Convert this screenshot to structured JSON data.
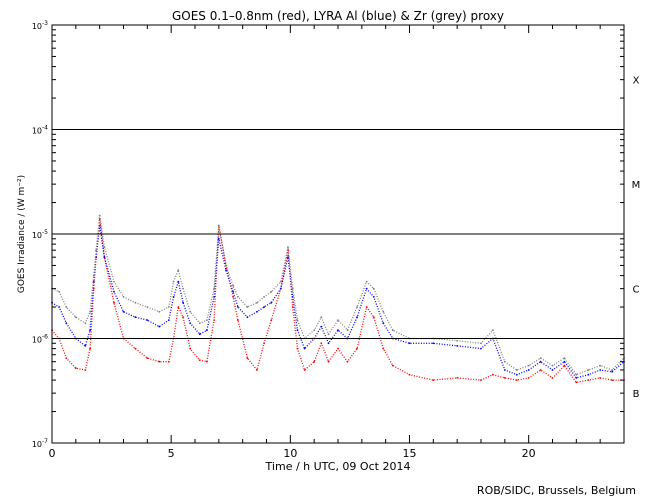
{
  "chart_data": {
    "type": "scatter",
    "title": "GOES 0.1–0.8nm (red), LYRA Al (blue) & Zr (grey) proxy",
    "xlabel": "Time / h UTC, 09 Oct 2014",
    "ylabel": "GOES Irradiance / (W m⁻²)",
    "xlim": [
      0,
      24
    ],
    "ylim": [
      1e-07,
      0.001
    ],
    "yscale": "log",
    "x_ticks": [
      0,
      5,
      10,
      15,
      20
    ],
    "y_ticks": [
      {
        "mantissa": "10",
        "exp": "-7",
        "value": 1e-07
      },
      {
        "mantissa": "10",
        "exp": "-6",
        "value": 1e-06
      },
      {
        "mantissa": "10",
        "exp": "-5",
        "value": 1e-05
      },
      {
        "mantissa": "10",
        "exp": "-4",
        "value": 0.0001
      },
      {
        "mantissa": "10",
        "exp": "-3",
        "value": 0.001
      }
    ],
    "flare_class_lines": [
      1e-06,
      1e-05,
      0.0001
    ],
    "flare_class_labels": [
      {
        "label": "X",
        "value": 0.0003
      },
      {
        "label": "M",
        "value": 3e-05
      },
      {
        "label": "C",
        "value": 3e-06
      },
      {
        "label": "B",
        "value": 3e-07
      }
    ],
    "grid": false,
    "series": [
      {
        "name": "GOES 0.1-0.8nm",
        "color": "#ff0000",
        "points": [
          [
            0.0,
            1.2e-06
          ],
          [
            0.3,
            1e-06
          ],
          [
            0.6,
            6.5e-07
          ],
          [
            1.0,
            5.2e-07
          ],
          [
            1.4,
            5e-07
          ],
          [
            1.6,
            8e-07
          ],
          [
            1.75,
            3e-06
          ],
          [
            1.85,
            6e-06
          ],
          [
            2.0,
            1.4e-05
          ],
          [
            2.2,
            6e-06
          ],
          [
            2.6,
            2.2e-06
          ],
          [
            3.0,
            1e-06
          ],
          [
            3.5,
            8e-07
          ],
          [
            4.0,
            6.5e-07
          ],
          [
            4.5,
            6e-07
          ],
          [
            4.9,
            6e-07
          ],
          [
            5.1,
            1e-06
          ],
          [
            5.3,
            2e-06
          ],
          [
            5.5,
            1.6e-06
          ],
          [
            5.8,
            8e-07
          ],
          [
            6.2,
            6.2e-07
          ],
          [
            6.5,
            6e-07
          ],
          [
            6.8,
            1.5e-06
          ],
          [
            7.0,
            1.2e-05
          ],
          [
            7.3,
            5e-06
          ],
          [
            7.6,
            2.5e-06
          ],
          [
            7.8,
            1.5e-06
          ],
          [
            8.2,
            6.5e-07
          ],
          [
            8.6,
            5e-07
          ],
          [
            8.9,
            9e-07
          ],
          [
            9.2,
            1.5e-06
          ],
          [
            9.6,
            3e-06
          ],
          [
            9.9,
            7e-06
          ],
          [
            10.1,
            2e-06
          ],
          [
            10.3,
            8e-07
          ],
          [
            10.6,
            5e-07
          ],
          [
            11.0,
            6e-07
          ],
          [
            11.3,
            9e-07
          ],
          [
            11.6,
            6e-07
          ],
          [
            12.0,
            8e-07
          ],
          [
            12.4,
            6e-07
          ],
          [
            12.8,
            8e-07
          ],
          [
            13.2,
            2e-06
          ],
          [
            13.5,
            1.6e-06
          ],
          [
            13.9,
            8e-07
          ],
          [
            14.3,
            5.5e-07
          ],
          [
            15.0,
            4.5e-07
          ],
          [
            16.0,
            4e-07
          ],
          [
            17.0,
            4.2e-07
          ],
          [
            18.0,
            4e-07
          ],
          [
            18.5,
            4.5e-07
          ],
          [
            19.0,
            4.2e-07
          ],
          [
            19.5,
            4e-07
          ],
          [
            20.0,
            4.2e-07
          ],
          [
            20.5,
            5e-07
          ],
          [
            21.0,
            4.2e-07
          ],
          [
            21.5,
            5.5e-07
          ],
          [
            22.0,
            3.8e-07
          ],
          [
            22.5,
            4e-07
          ],
          [
            23.0,
            4.2e-07
          ],
          [
            23.5,
            4e-07
          ],
          [
            24.0,
            4e-07
          ]
        ]
      },
      {
        "name": "LYRA Al proxy",
        "color": "#0000ff",
        "points": [
          [
            0.0,
            2.2e-06
          ],
          [
            0.3,
            2e-06
          ],
          [
            0.6,
            1.4e-06
          ],
          [
            1.0,
            1e-06
          ],
          [
            1.4,
            8.5e-07
          ],
          [
            1.6,
            1.2e-06
          ],
          [
            1.75,
            3.5e-06
          ],
          [
            1.85,
            6e-06
          ],
          [
            2.0,
            1.2e-05
          ],
          [
            2.2,
            6e-06
          ],
          [
            2.6,
            2.8e-06
          ],
          [
            3.0,
            1.8e-06
          ],
          [
            3.5,
            1.6e-06
          ],
          [
            4.0,
            1.5e-06
          ],
          [
            4.5,
            1.3e-06
          ],
          [
            4.9,
            1.5e-06
          ],
          [
            5.1,
            2.5e-06
          ],
          [
            5.3,
            3.5e-06
          ],
          [
            5.5,
            2.2e-06
          ],
          [
            5.8,
            1.4e-06
          ],
          [
            6.2,
            1.1e-06
          ],
          [
            6.5,
            1.2e-06
          ],
          [
            6.8,
            2.5e-06
          ],
          [
            7.0,
            9e-06
          ],
          [
            7.3,
            4.5e-06
          ],
          [
            7.6,
            2.8e-06
          ],
          [
            7.8,
            2e-06
          ],
          [
            8.2,
            1.6e-06
          ],
          [
            8.6,
            1.8e-06
          ],
          [
            8.9,
            2e-06
          ],
          [
            9.2,
            2.2e-06
          ],
          [
            9.6,
            3e-06
          ],
          [
            9.9,
            6e-06
          ],
          [
            10.1,
            2.5e-06
          ],
          [
            10.3,
            1.2e-06
          ],
          [
            10.6,
            8e-07
          ],
          [
            11.0,
            1e-06
          ],
          [
            11.3,
            1.3e-06
          ],
          [
            11.6,
            9e-07
          ],
          [
            12.0,
            1.2e-06
          ],
          [
            12.4,
            1e-06
          ],
          [
            12.8,
            1.6e-06
          ],
          [
            13.2,
            3e-06
          ],
          [
            13.5,
            2.5e-06
          ],
          [
            13.9,
            1.4e-06
          ],
          [
            14.3,
            1e-06
          ],
          [
            15.0,
            9e-07
          ],
          [
            16.0,
            9e-07
          ],
          [
            17.0,
            8.5e-07
          ],
          [
            18.0,
            8e-07
          ],
          [
            18.5,
            1e-06
          ],
          [
            19.0,
            5e-07
          ],
          [
            19.5,
            4.5e-07
          ],
          [
            20.0,
            5e-07
          ],
          [
            20.5,
            6e-07
          ],
          [
            21.0,
            5e-07
          ],
          [
            21.5,
            6e-07
          ],
          [
            22.0,
            4.2e-07
          ],
          [
            22.5,
            4.5e-07
          ],
          [
            23.0,
            5e-07
          ],
          [
            23.5,
            4.8e-07
          ],
          [
            24.0,
            6e-07
          ]
        ]
      },
      {
        "name": "LYRA Zr proxy",
        "color": "#808080",
        "points": [
          [
            0.0,
            3e-06
          ],
          [
            0.3,
            2.8e-06
          ],
          [
            0.6,
            2e-06
          ],
          [
            1.0,
            1.6e-06
          ],
          [
            1.4,
            1.4e-06
          ],
          [
            1.6,
            1.8e-06
          ],
          [
            1.75,
            4e-06
          ],
          [
            1.85,
            7e-06
          ],
          [
            2.0,
            1.5e-05
          ],
          [
            2.2,
            7.5e-06
          ],
          [
            2.6,
            3.5e-06
          ],
          [
            3.0,
            2.5e-06
          ],
          [
            3.5,
            2.2e-06
          ],
          [
            4.0,
            2e-06
          ],
          [
            4.5,
            1.8e-06
          ],
          [
            4.9,
            2e-06
          ],
          [
            5.1,
            3.5e-06
          ],
          [
            5.3,
            4.5e-06
          ],
          [
            5.5,
            3e-06
          ],
          [
            5.8,
            1.8e-06
          ],
          [
            6.2,
            1.4e-06
          ],
          [
            6.5,
            1.5e-06
          ],
          [
            6.8,
            3e-06
          ],
          [
            7.0,
            1.2e-05
          ],
          [
            7.3,
            5e-06
          ],
          [
            7.6,
            3.2e-06
          ],
          [
            7.8,
            2.5e-06
          ],
          [
            8.2,
            2e-06
          ],
          [
            8.6,
            2.2e-06
          ],
          [
            8.9,
            2.5e-06
          ],
          [
            9.2,
            2.8e-06
          ],
          [
            9.6,
            3.5e-06
          ],
          [
            9.9,
            7.5e-06
          ],
          [
            10.1,
            3e-06
          ],
          [
            10.3,
            1.5e-06
          ],
          [
            10.6,
            1e-06
          ],
          [
            11.0,
            1.2e-06
          ],
          [
            11.3,
            1.6e-06
          ],
          [
            11.6,
            1.1e-06
          ],
          [
            12.0,
            1.5e-06
          ],
          [
            12.4,
            1.2e-06
          ],
          [
            12.8,
            2e-06
          ],
          [
            13.2,
            3.5e-06
          ],
          [
            13.5,
            3e-06
          ],
          [
            13.9,
            1.8e-06
          ],
          [
            14.3,
            1.2e-06
          ],
          [
            15.0,
            1e-06
          ],
          [
            16.0,
            1e-06
          ],
          [
            17.0,
            9.5e-07
          ],
          [
            18.0,
            9e-07
          ],
          [
            18.5,
            1.2e-06
          ],
          [
            19.0,
            6e-07
          ],
          [
            19.5,
            5e-07
          ],
          [
            20.0,
            5.5e-07
          ],
          [
            20.5,
            6.5e-07
          ],
          [
            21.0,
            5.5e-07
          ],
          [
            21.5,
            6.5e-07
          ],
          [
            22.0,
            4.5e-07
          ],
          [
            22.5,
            5e-07
          ],
          [
            23.0,
            5.5e-07
          ],
          [
            23.5,
            5e-07
          ],
          [
            24.0,
            6.5e-07
          ]
        ]
      }
    ]
  },
  "footer": "ROB/SIDC, Brussels, Belgium"
}
